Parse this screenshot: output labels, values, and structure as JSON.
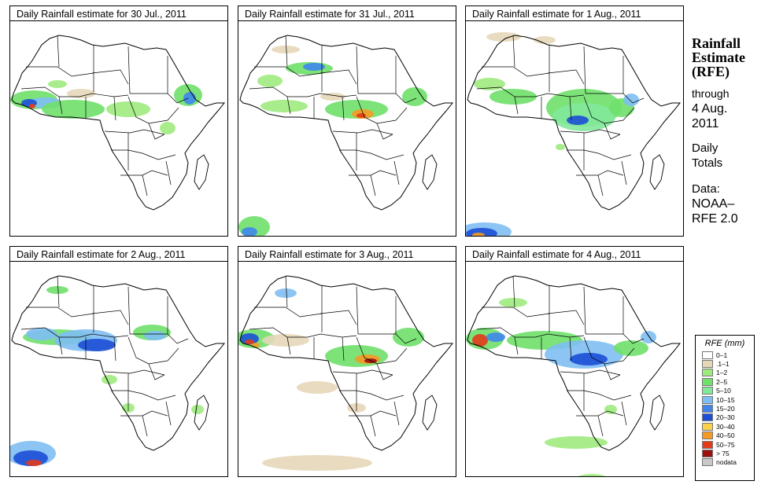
{
  "panels": [
    {
      "title": "Daily Rainfall estimate for  30 Jul., 2011",
      "variant": 0
    },
    {
      "title": "Daily Rainfall estimate for  31 Jul., 2011",
      "variant": 1
    },
    {
      "title": "Daily Rainfall estimate for  1 Aug., 2011",
      "variant": 2
    },
    {
      "title": "Daily Rainfall estimate for  2 Aug., 2011",
      "variant": 3
    },
    {
      "title": "Daily Rainfall estimate for  3 Aug., 2011",
      "variant": 4
    },
    {
      "title": "Daily Rainfall estimate for  4 Aug., 2011",
      "variant": 5
    }
  ],
  "sidebar": {
    "heading_line1": "Rainfall",
    "heading_line2": "Estimate",
    "heading_line3": "(RFE)",
    "through_label": "through",
    "date_line1": "4 Aug.",
    "date_line2": "2011",
    "daily_line1": "Daily",
    "daily_line2": "Totals",
    "data_label": "Data:",
    "source_line1": "NOAA–",
    "source_line2": "RFE 2.0"
  },
  "legend": {
    "title": "RFE (mm)",
    "entries": [
      {
        "label": "0–1",
        "color": "#ffffff"
      },
      {
        "label": ".1–1",
        "color": "#e6d7b9"
      },
      {
        "label": "1–2",
        "color": "#9eea7e"
      },
      {
        "label": "2–5",
        "color": "#6fe06a"
      },
      {
        "label": "5–10",
        "color": "#82e89a"
      },
      {
        "label": "10–15",
        "color": "#7fbef3"
      },
      {
        "label": "15–20",
        "color": "#3f86ec"
      },
      {
        "label": "20–30",
        "color": "#1c4fd6"
      },
      {
        "label": "30–40",
        "color": "#f7d24a"
      },
      {
        "label": "40–50",
        "color": "#f59a23"
      },
      {
        "label": "50–75",
        "color": "#e33a1a"
      },
      {
        "label": "> 75",
        "color": "#9b1010"
      },
      {
        "label": "nodata",
        "color": "#c8c8c8"
      }
    ]
  }
}
